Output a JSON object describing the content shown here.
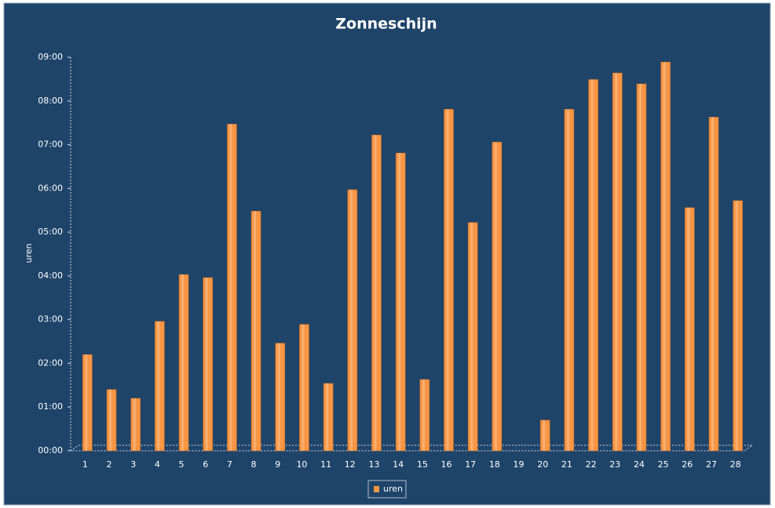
{
  "chart_data": {
    "type": "bar",
    "title": "Zonneschijn",
    "y_label": "uren",
    "categories": [
      "1",
      "2",
      "3",
      "4",
      "5",
      "6",
      "7",
      "8",
      "9",
      "10",
      "11",
      "12",
      "13",
      "14",
      "15",
      "16",
      "17",
      "18",
      "19",
      "20",
      "21",
      "22",
      "23",
      "24",
      "25",
      "26",
      "27",
      "28"
    ],
    "series": [
      {
        "name": "uren",
        "color": "#f79646",
        "values": [
          2.2,
          1.4,
          1.2,
          2.96,
          4.03,
          3.96,
          7.47,
          5.48,
          2.46,
          2.89,
          1.54,
          5.97,
          7.22,
          6.81,
          1.63,
          7.81,
          5.22,
          7.06,
          0,
          0.7,
          7.81,
          8.49,
          8.64,
          8.39,
          8.89,
          5.56,
          7.63,
          5.72
        ]
      }
    ],
    "ylim": [
      0,
      9
    ],
    "yticks": [
      {
        "value": 0,
        "label": "00:00"
      },
      {
        "value": 1,
        "label": "01:00"
      },
      {
        "value": 2,
        "label": "02:00"
      },
      {
        "value": 3,
        "label": "03:00"
      },
      {
        "value": 4,
        "label": "04:00"
      },
      {
        "value": 5,
        "label": "05:00"
      },
      {
        "value": 6,
        "label": "06:00"
      },
      {
        "value": 7,
        "label": "07:00"
      },
      {
        "value": 8,
        "label": "08:00"
      },
      {
        "value": 9,
        "label": "09:00"
      }
    ],
    "legend": "bottom"
  }
}
